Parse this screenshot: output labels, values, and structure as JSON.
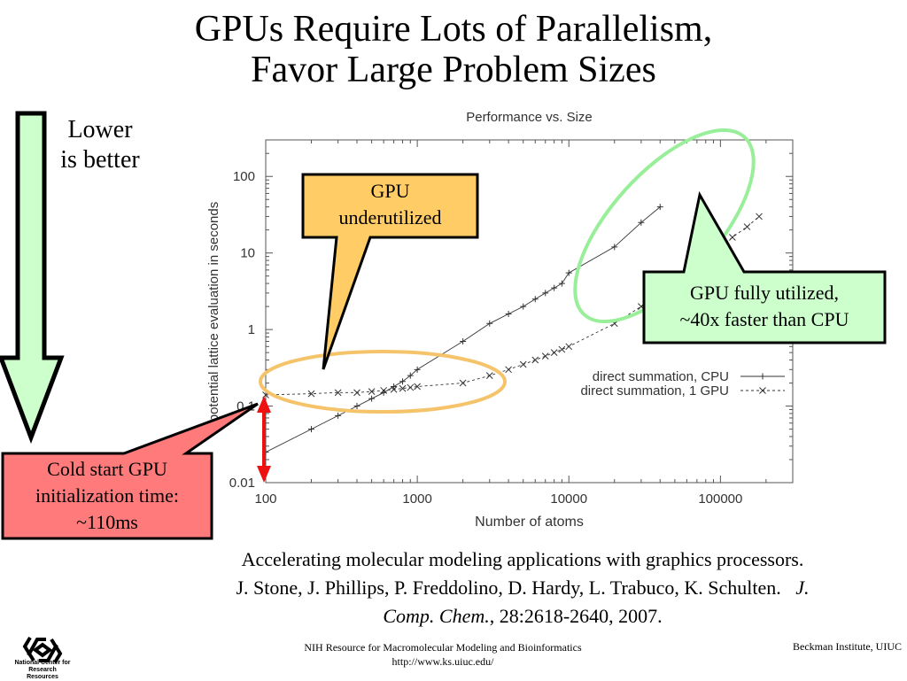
{
  "title_lines": [
    "GPUs Require Lots of Parallelism,",
    "Favor Large Problem Sizes"
  ],
  "lower_better_lines": [
    "Lower",
    "is better"
  ],
  "callouts": {
    "underutilized": [
      "GPU",
      "underutilized"
    ],
    "fully": [
      "GPU fully utilized,",
      "~40x faster than CPU"
    ],
    "coldstart": [
      "Cold start GPU",
      "initialization time:",
      "~110ms"
    ]
  },
  "citation": {
    "line1": "Accelerating molecular modeling applications with graphics processors.",
    "line2_plain": "J. Stone, J. Phillips, P. Freddolino, D. Hardy, L. Trabuco, K. Schulten.",
    "line2_italic": "J.",
    "line3_italic": "Comp. Chem.",
    "line3_plain": ", 28:2618-2640, 2007."
  },
  "footer": {
    "center_lines": [
      "NIH Resource for Macromolecular Modeling and Bioinformatics",
      "http://www.ks.uiuc.edu/"
    ],
    "right": "Beckman Institute, UIUC",
    "logo_text_lines": [
      "National Center for",
      "Research Resources"
    ]
  },
  "colors": {
    "arrow_fill": "#ccffcc",
    "underutilized_fill": "#ffcc66",
    "underutilized_ellipse": "#f5c36a",
    "fully_fill": "#ccffcc",
    "fully_ellipse": "#99ee99",
    "coldstart_fill": "#ff7b7b",
    "red_arrow": "#ee1111",
    "chart_line": "#333333",
    "chart_axis": "#555555"
  },
  "chart_data": {
    "type": "line",
    "title": "Performance vs. Size",
    "xlabel": "Number of atoms",
    "ylabel": "potential lattice evaluation in seconds",
    "xscale": "log",
    "yscale": "log",
    "xlim": [
      100,
      300000
    ],
    "ylim": [
      0.01,
      300
    ],
    "xticks": [
      100,
      1000,
      10000,
      100000
    ],
    "xtick_labels": [
      "100",
      "1000",
      "10000",
      "100000"
    ],
    "yticks": [
      0.01,
      0.1,
      1,
      10,
      100
    ],
    "ytick_labels": [
      "0.01",
      "0.1",
      "1",
      "10",
      "100"
    ],
    "grid": false,
    "legend_position": "right",
    "series": [
      {
        "name": "direct summation, CPU",
        "marker": "plus",
        "dash": "solid",
        "points": [
          [
            100,
            0.025
          ],
          [
            200,
            0.05
          ],
          [
            300,
            0.075
          ],
          [
            400,
            0.1
          ],
          [
            500,
            0.125
          ],
          [
            600,
            0.15
          ],
          [
            700,
            0.18
          ],
          [
            800,
            0.21
          ],
          [
            900,
            0.25
          ],
          [
            1000,
            0.3
          ],
          [
            2000,
            0.7
          ],
          [
            3000,
            1.2
          ],
          [
            4000,
            1.6
          ],
          [
            5000,
            2.0
          ],
          [
            6000,
            2.5
          ],
          [
            7000,
            3.0
          ],
          [
            8000,
            3.5
          ],
          [
            9000,
            4.0
          ],
          [
            10000,
            5.5
          ],
          [
            20000,
            12
          ],
          [
            30000,
            25
          ],
          [
            40000,
            40
          ]
        ]
      },
      {
        "name": "direct summation, 1 GPU",
        "marker": "x",
        "dash": "dashed",
        "points": [
          [
            100,
            0.14
          ],
          [
            200,
            0.145
          ],
          [
            300,
            0.15
          ],
          [
            400,
            0.15
          ],
          [
            500,
            0.155
          ],
          [
            600,
            0.16
          ],
          [
            700,
            0.165
          ],
          [
            800,
            0.17
          ],
          [
            900,
            0.175
          ],
          [
            1000,
            0.18
          ],
          [
            2000,
            0.2
          ],
          [
            3000,
            0.25
          ],
          [
            4000,
            0.3
          ],
          [
            5000,
            0.35
          ],
          [
            6000,
            0.4
          ],
          [
            7000,
            0.45
          ],
          [
            8000,
            0.5
          ],
          [
            9000,
            0.55
          ],
          [
            10000,
            0.6
          ],
          [
            20000,
            1.2
          ],
          [
            30000,
            2.0
          ],
          [
            40000,
            2.8
          ],
          [
            50000,
            3.5
          ],
          [
            60000,
            5.0
          ],
          [
            70000,
            6.5
          ],
          [
            80000,
            8.0
          ],
          [
            90000,
            10
          ],
          [
            100000,
            12
          ],
          [
            120000,
            16
          ],
          [
            150000,
            22
          ],
          [
            180000,
            30
          ]
        ]
      }
    ]
  }
}
